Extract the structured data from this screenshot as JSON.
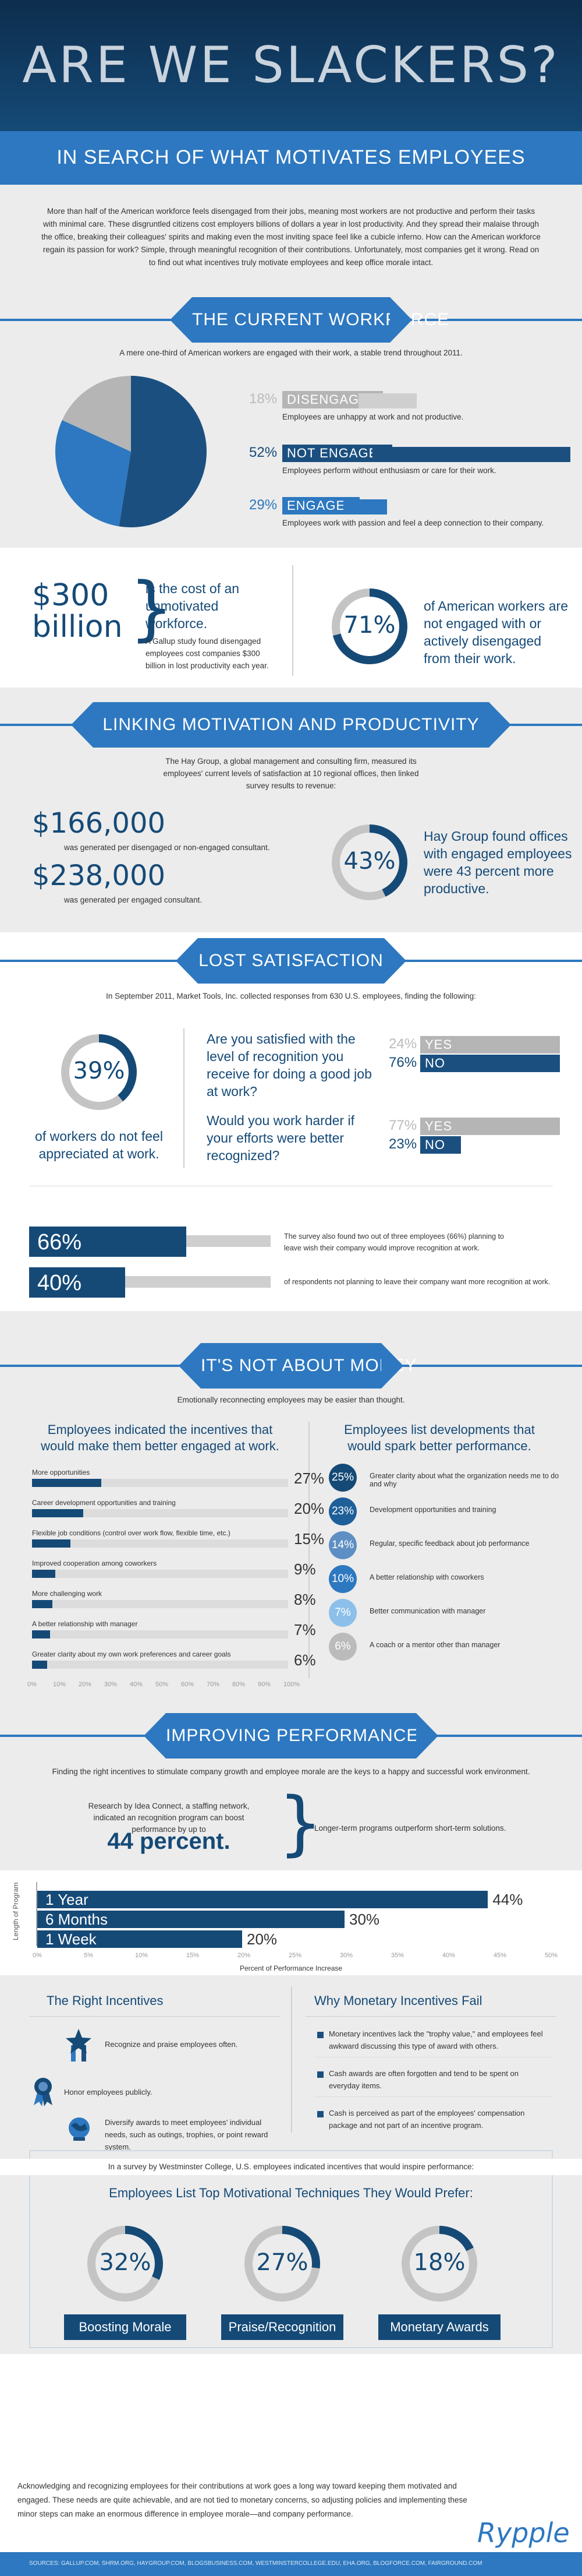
{
  "header": {
    "title": "ARE WE SLACKERS?",
    "subtitle": "IN SEARCH OF WHAT MOTIVATES EMPLOYEES"
  },
  "intro": "More than half of the American workforce feels disengaged from their jobs, meaning most workers are not productive and perform their tasks with minimal care. These disgruntled citizens cost employers billions of dollars a year in lost productivity. And they spread their malaise through the office, breaking their colleagues' spirits and making even the most inviting space feel like a cubicle inferno. How can the American workforce regain its passion for work? Simple, through meaningful recognition of their contributions. Unfortunately, most companies get it wrong. Read on to find out what incentives truly motivate employees and keep office morale intact.",
  "current_workforce": {
    "heading": "THE CURRENT WORKFORCE",
    "intro": "A mere one-third of American workers are engaged with their work, a stable trend throughout 2011.",
    "items": [
      {
        "pct": "18%",
        "label": "DISENGAGED",
        "desc": "Employees are unhappy at work and not productive.",
        "value": 18,
        "color": "#b5b5b5"
      },
      {
        "pct": "52%",
        "label": "NOT ENGAGED",
        "desc": "Employees perform without enthusiasm or care for their work.",
        "value": 52,
        "color": "#1b4f80"
      },
      {
        "pct": "29%",
        "label": "ENGAGED",
        "desc": "Employees work with passion and feel a deep connection to their company.",
        "value": 29,
        "color": "#2d78c0"
      }
    ],
    "cost_amount_line1": "$300",
    "cost_amount_line2": "billion",
    "cost_text": "is the cost of an unmotivated workforce.",
    "cost_detail": "A Gallup study found disengaged employees cost companies $300 billion in lost productivity each year.",
    "not_engaged_pct": "71%",
    "not_engaged_value": 71,
    "not_engaged_text": "of American workers are not engaged with or actively disengaged from their work."
  },
  "linking": {
    "heading": "LINKING MOTIVATION AND PRODUCTIVITY",
    "intro": "The Hay Group, a global management and consulting firm, measured its employees' current levels of satisfaction at 10 regional offices, then linked survey results to revenue:",
    "amount1": "$166,000",
    "amount1_desc": "was generated per disengaged or non-engaged consultant.",
    "amount2": "$238,000",
    "amount2_desc": "was generated per engaged consultant.",
    "pct": "43%",
    "pct_value": 43,
    "pct_text": "Hay Group found offices with engaged employees were 43 percent more productive."
  },
  "lost_satisfaction": {
    "heading": "LOST SATISFACTION",
    "intro": "In September 2011, Market Tools, Inc. collected responses from 630 U.S. employees, finding the following:",
    "pct": "39%",
    "pct_value": 39,
    "pct_text": "of workers do not feel appreciated at work.",
    "q1": "Are you satisfied with the level of recognition you receive for doing a good job at work?",
    "q1_yes_pct": "24%",
    "q1_yes": "YES",
    "q1_yes_value": 24,
    "q1_no_pct": "76%",
    "q1_no": "NO",
    "q1_no_value": 76,
    "q2": "Would you work harder if your efforts were better recognized?",
    "q2_yes_pct": "77%",
    "q2_yes": "YES",
    "q2_yes_value": 77,
    "q2_no_pct": "23%",
    "q2_no": "NO",
    "q2_no_value": 23,
    "bar1_pct": "66%",
    "bar1_value": 66,
    "bar1_text": "The survey also found two out of three employees (66%) planning to leave wish their company would improve recognition at work.",
    "bar2_pct": "40%",
    "bar2_value": 40,
    "bar2_text": "of respondents not planning to leave their company want more recognition at work."
  },
  "money": {
    "heading": "IT'S NOT ABOUT MONEY",
    "intro": "Emotionally reconnecting employees may be easier than thought.",
    "left_head": "Employees indicated the incentives that would make them better engaged at work.",
    "right_head": "Employees list developments that would spark better performance.",
    "incentives": [
      {
        "label": "More opportunities",
        "pct": "27%",
        "value": 27
      },
      {
        "label": "Career development opportunities and training",
        "pct": "20%",
        "value": 20
      },
      {
        "label": "Flexible job conditions (control over work flow, flexible time, etc.)",
        "pct": "15%",
        "value": 15
      },
      {
        "label": "Improved cooperation among coworkers",
        "pct": "9%",
        "value": 9
      },
      {
        "label": "More challenging work",
        "pct": "8%",
        "value": 8
      },
      {
        "label": "A better relationship with manager",
        "pct": "7%",
        "value": 7
      },
      {
        "label": "Greater clarity about my own work preferences and career goals",
        "pct": "6%",
        "value": 6
      }
    ],
    "axis_ticks": [
      "0%",
      "10%",
      "20%",
      "30%",
      "40%",
      "50%",
      "60%",
      "70%",
      "80%",
      "90%",
      "100%"
    ],
    "developments": [
      {
        "pct": "25%",
        "label": "Greater clarity about what the organization needs me to do and why",
        "color": "#154a77"
      },
      {
        "pct": "23%",
        "label": "Development opportunities and training",
        "color": "#1f5f99"
      },
      {
        "pct": "14%",
        "label": "Regular, specific feedback about job performance",
        "color": "#5e8fc4"
      },
      {
        "pct": "10%",
        "label": "A better relationship with coworkers",
        "color": "#2d78c0"
      },
      {
        "pct": "7%",
        "label": "Better communication with manager",
        "color": "#8cc0ea"
      },
      {
        "pct": "6%",
        "label": "A coach or a mentor other than manager",
        "color": "#bbbbbb"
      }
    ]
  },
  "performance": {
    "heading": "IMPROVING PERFORMANCE",
    "intro": "Finding the right incentives to stimulate company growth and employee morale are the keys to a happy and successful work environment.",
    "research_text": "Research by Idea Connect, a staffing network, indicated an recognition program can boost performance by up to",
    "research_pct": "44 percent.",
    "longer_text": "Longer-term programs outperform short-term solutions.",
    "y_axis": "Length of Program",
    "x_axis": "Percent of Performance Increase",
    "bars": [
      {
        "label": "1 Year",
        "pct": "44%",
        "value": 44
      },
      {
        "label": "6 Months",
        "pct": "30%",
        "value": 30
      },
      {
        "label": "1 Week",
        "pct": "20%",
        "value": 20
      }
    ],
    "axis_ticks": [
      "0%",
      "5%",
      "10%",
      "15%",
      "20%",
      "25%",
      "30%",
      "35%",
      "40%",
      "45%",
      "50%"
    ]
  },
  "incentives": {
    "left_head": "The Right Incentives",
    "right_head": "Why Monetary Incentives Fail",
    "left_items": [
      "Recognize and praise employees often.",
      "Honor employees publicly.",
      "Diversify awards to meet employees' individual needs, such as outings, trophies, or point reward system."
    ],
    "right_items": [
      "Monetary incentives lack the \"trophy value,\" and employees feel awkward discussing this type of award with others.",
      "Cash awards are often forgotten and tend to be spent on everyday items.",
      "Cash is perceived as part of the employees' compensation package and not part of an incentive program."
    ],
    "survey_text": "In a survey by Westminster College, U.S. employees indicated incentives that would inspire performance:",
    "survey_head": "Employees List Top Motivational Techniques They Would Prefer:",
    "prefs": [
      {
        "pct": "32%",
        "value": 32,
        "label": "Boosting Morale"
      },
      {
        "pct": "27%",
        "value": 27,
        "label": "Praise/Recognition"
      },
      {
        "pct": "18%",
        "value": 18,
        "label": "Monetary Awards"
      }
    ]
  },
  "closing": "Acknowledging and recognizing employees for their contributions at work goes a long way toward keeping them motivated and engaged. These needs are quite achievable, and are not tied to monetary concerns, so adjusting policies and implementing these minor steps can make an enormous difference in employee morale—and company performance.",
  "brand": "Rypple",
  "sources": "SOURCES: GALLUP.COM, SHRM.ORG, HAYGROUP.COM, BLOGSBUSINESS.COM, WESTMINSTERCOLLEGE.EDU, EHA.ORG, BLOGFORCE.COM, FAIRGROUND.COM"
}
